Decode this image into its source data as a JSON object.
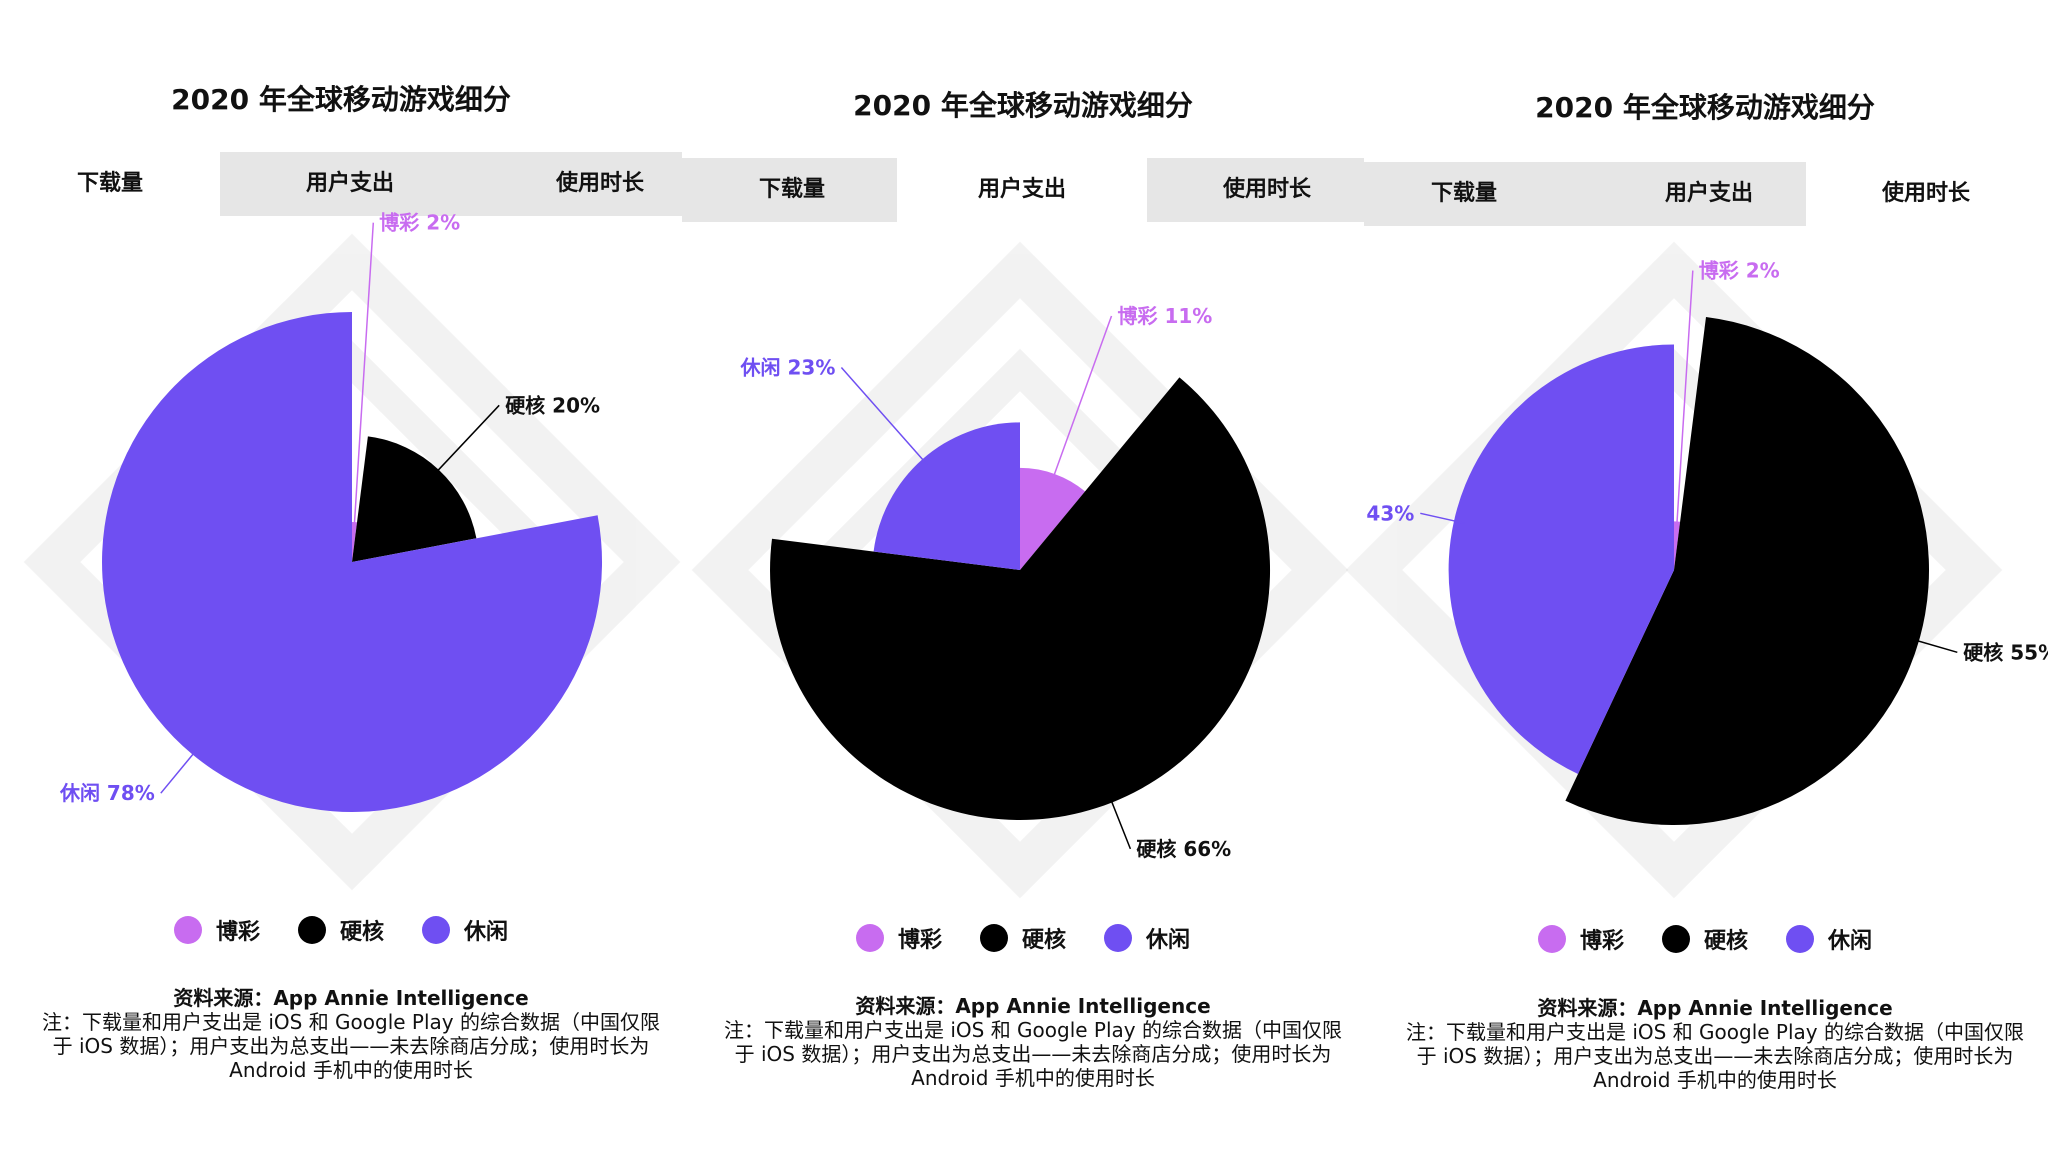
{
  "colors": {
    "gambling": "#c86cf0",
    "hardcore": "#000000",
    "casual": "#6f4ff2"
  },
  "panels": [
    {
      "title": "2020 年全球移动游戏细分",
      "tabs": [
        {
          "label": "下载量",
          "active": true
        },
        {
          "label": "用户支出",
          "active": false
        },
        {
          "label": "使用时长",
          "active": false
        }
      ],
      "legend": [
        {
          "label": "博彩",
          "color": "#c86cf0"
        },
        {
          "label": "硬核",
          "color": "#000000"
        },
        {
          "label": "休闲",
          "color": "#6f4ff2"
        }
      ],
      "source_line": "资料来源：App Annie Intelligence",
      "note": "注：下载量和用户支出是 iOS 和 Google Play 的综合数据（中国仅限于 iOS 数据）；用户支出为总支出——未去除商店分成；使用时长为 Android 手机中的使用时长"
    },
    {
      "title": "2020 年全球移动游戏细分",
      "tabs": [
        {
          "label": "下载量",
          "active": false
        },
        {
          "label": "用户支出",
          "active": true
        },
        {
          "label": "使用时长",
          "active": false
        }
      ],
      "legend": [
        {
          "label": "博彩",
          "color": "#c86cf0"
        },
        {
          "label": "硬核",
          "color": "#000000"
        },
        {
          "label": "休闲",
          "color": "#6f4ff2"
        }
      ],
      "source_line": "资料来源：App Annie Intelligence",
      "note": "注：下载量和用户支出是 iOS 和 Google Play 的综合数据（中国仅限于 iOS 数据）；用户支出为总支出——未去除商店分成；使用时长为 Android 手机中的使用时长"
    },
    {
      "title": "2020 年全球移动游戏细分",
      "tabs": [
        {
          "label": "下载量",
          "active": false
        },
        {
          "label": "用户支出",
          "active": false
        },
        {
          "label": "使用时长",
          "active": true
        }
      ],
      "legend": [
        {
          "label": "博彩",
          "color": "#c86cf0"
        },
        {
          "label": "硬核",
          "color": "#000000"
        },
        {
          "label": "休闲",
          "color": "#6f4ff2"
        }
      ],
      "source_line": "资料来源：App Annie Intelligence",
      "note": "注：下载量和用户支出是 iOS 和 Google Play 的综合数据（中国仅限于 iOS 数据）；用户支出为总支出——未去除商店分成；使用时长为 Android 手机中的使用时长"
    }
  ],
  "chart_data": [
    {
      "type": "pie",
      "title": "2020 年全球移动游戏细分",
      "metric": "下载量",
      "categories": [
        "博彩",
        "硬核",
        "休闲"
      ],
      "values": [
        2,
        20,
        78
      ],
      "labels": [
        "博彩 2%",
        "硬核 20%",
        "休闲 78%"
      ],
      "legend": "bottom"
    },
    {
      "type": "pie",
      "title": "2020 年全球移动游戏细分",
      "metric": "用户支出",
      "categories": [
        "博彩",
        "硬核",
        "休闲"
      ],
      "values": [
        11,
        66,
        23
      ],
      "labels": [
        "博彩 11%",
        "硬核 66%",
        "休闲 23%"
      ],
      "legend": "bottom"
    },
    {
      "type": "pie",
      "title": "2020 年全球移动游戏细分",
      "metric": "使用时长",
      "categories": [
        "博彩",
        "硬核",
        "休闲"
      ],
      "values": [
        2,
        55,
        43
      ],
      "labels": [
        "博彩 2%",
        "硬核 55%",
        "43%"
      ],
      "legend": "bottom"
    }
  ]
}
